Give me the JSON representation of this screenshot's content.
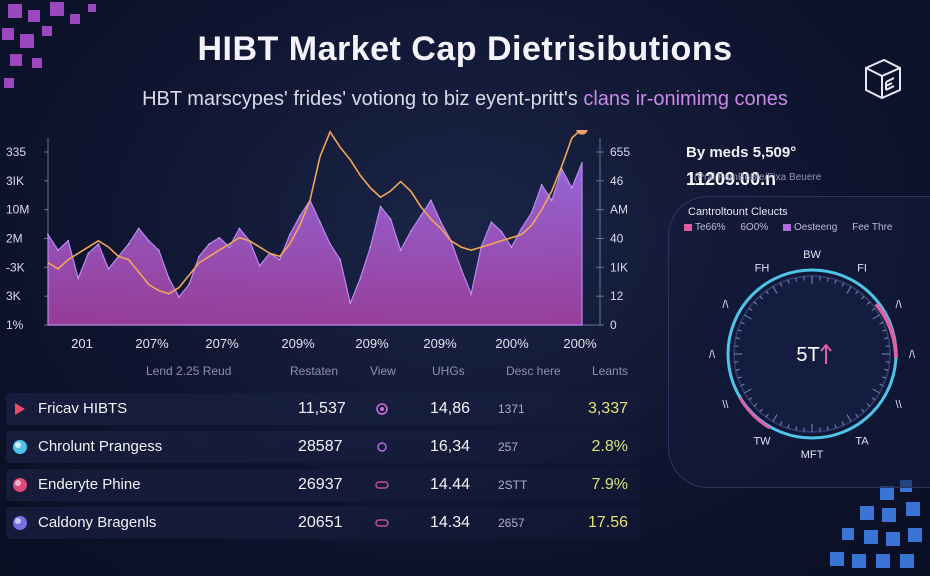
{
  "header": {
    "title": "HIBT Market Cap Dietrisibutions",
    "subtitle_main": "HBT marscypes' frides' votiong to biz eyent-pritt's ",
    "subtitle_accent": "clans ir-onimimg cones"
  },
  "stats": {
    "line1": "By meds 5,509°",
    "line2": "11209.00.n",
    "line3": "(Pral FamBeBle/Fixa Beuere"
  },
  "dial": {
    "title": "Cantroltount Cleucts",
    "legend": [
      {
        "label": "Te66%",
        "color": "#e05aa0"
      },
      {
        "label": "6O0%",
        "color": "#ffffff"
      },
      {
        "label": "Oesteeng",
        "color": "#b06be0"
      },
      {
        "label": "Fee Thre",
        "color": "#ffffff"
      }
    ],
    "center": "5T",
    "labels": [
      "BW",
      "FI",
      "/\\",
      "/\\",
      "\\\\",
      "TA",
      "MFT",
      "TW",
      "\\\\",
      "/\\",
      "/\\",
      "FH"
    ],
    "colors": {
      "ring": "#4fc3e8",
      "accent": "#e060a8"
    }
  },
  "chart_data": {
    "type": "area",
    "title": "HIBT Market Cap Dietrisibutions",
    "x_ticks": [
      "201",
      "207%",
      "207%",
      "209%",
      "209%",
      "209%",
      "200%",
      "200%"
    ],
    "y_left_ticks": [
      "335",
      "3IK",
      "10M",
      "2M",
      "-3K",
      "3K",
      "1%"
    ],
    "y_right_ticks": [
      "655",
      "46",
      "AM",
      "40",
      "1IK",
      "12",
      "0"
    ],
    "ylim": [
      0,
      60
    ],
    "series": [
      {
        "type": "area",
        "color": "#8e57d6",
        "values": [
          29,
          24,
          27,
          15,
          23,
          26,
          18,
          22,
          26,
          31,
          27,
          24,
          15,
          9,
          13,
          22,
          26,
          28,
          25,
          31,
          27,
          19,
          23,
          21,
          29,
          35,
          40,
          33,
          26,
          21,
          7,
          15,
          25,
          38,
          34,
          24,
          30,
          35,
          40,
          33,
          27,
          18,
          10,
          25,
          33,
          30,
          25,
          31,
          36,
          45,
          40,
          50,
          44,
          52
        ]
      },
      {
        "type": "line",
        "color": "#f2a658",
        "values": [
          20,
          18,
          21,
          23,
          25,
          27,
          25,
          22,
          21,
          17,
          13,
          11,
          10,
          12,
          16,
          20,
          22,
          24,
          26,
          28,
          27,
          25,
          23,
          22,
          26,
          32,
          40,
          54,
          62,
          57,
          53,
          48,
          44,
          41,
          43,
          46,
          43,
          38,
          34,
          31,
          27,
          25,
          24,
          25,
          26,
          27,
          28,
          29,
          32,
          37,
          43,
          51,
          60,
          63
        ]
      }
    ]
  },
  "table": {
    "headers": [
      "Lend 2.25 Reud",
      "Restaten",
      "View",
      "UHGs",
      "Desc here",
      "Leants"
    ],
    "rows": [
      {
        "name": "Fricav HIBTS",
        "c1": "11,537",
        "c2": "14,86",
        "c3": "1371",
        "c4": "3,337",
        "c4_color": "#e8e07a",
        "icon": "play",
        "icon_color": "#e84a6a",
        "glyph_color": "#d46ad8"
      },
      {
        "name": "Chrolunt Prangess",
        "c1": "28587",
        "c2": "16,34",
        "c3": "257",
        "c4": "2.8%",
        "c4_color": "#d8e27a",
        "icon": "circle",
        "icon_color": "#4fc3e8",
        "glyph_color": "#b06be0"
      },
      {
        "name": "Enderyte Phine",
        "c1": "26937",
        "c2": "14.44",
        "c3": "2STT",
        "c4": "7.9%",
        "c4_color": "#d8e27a",
        "icon": "circle",
        "icon_color": "#e04a7a",
        "glyph_color": "#c05090"
      },
      {
        "name": "Caldony Bragenls",
        "c1": "20651",
        "c2": "14.34",
        "c3": "2657",
        "c4": "17.56",
        "c4_color": "#e8e07a",
        "icon": "circle",
        "icon_color": "#7a6de8",
        "glyph_color": "#c05090"
      }
    ]
  }
}
